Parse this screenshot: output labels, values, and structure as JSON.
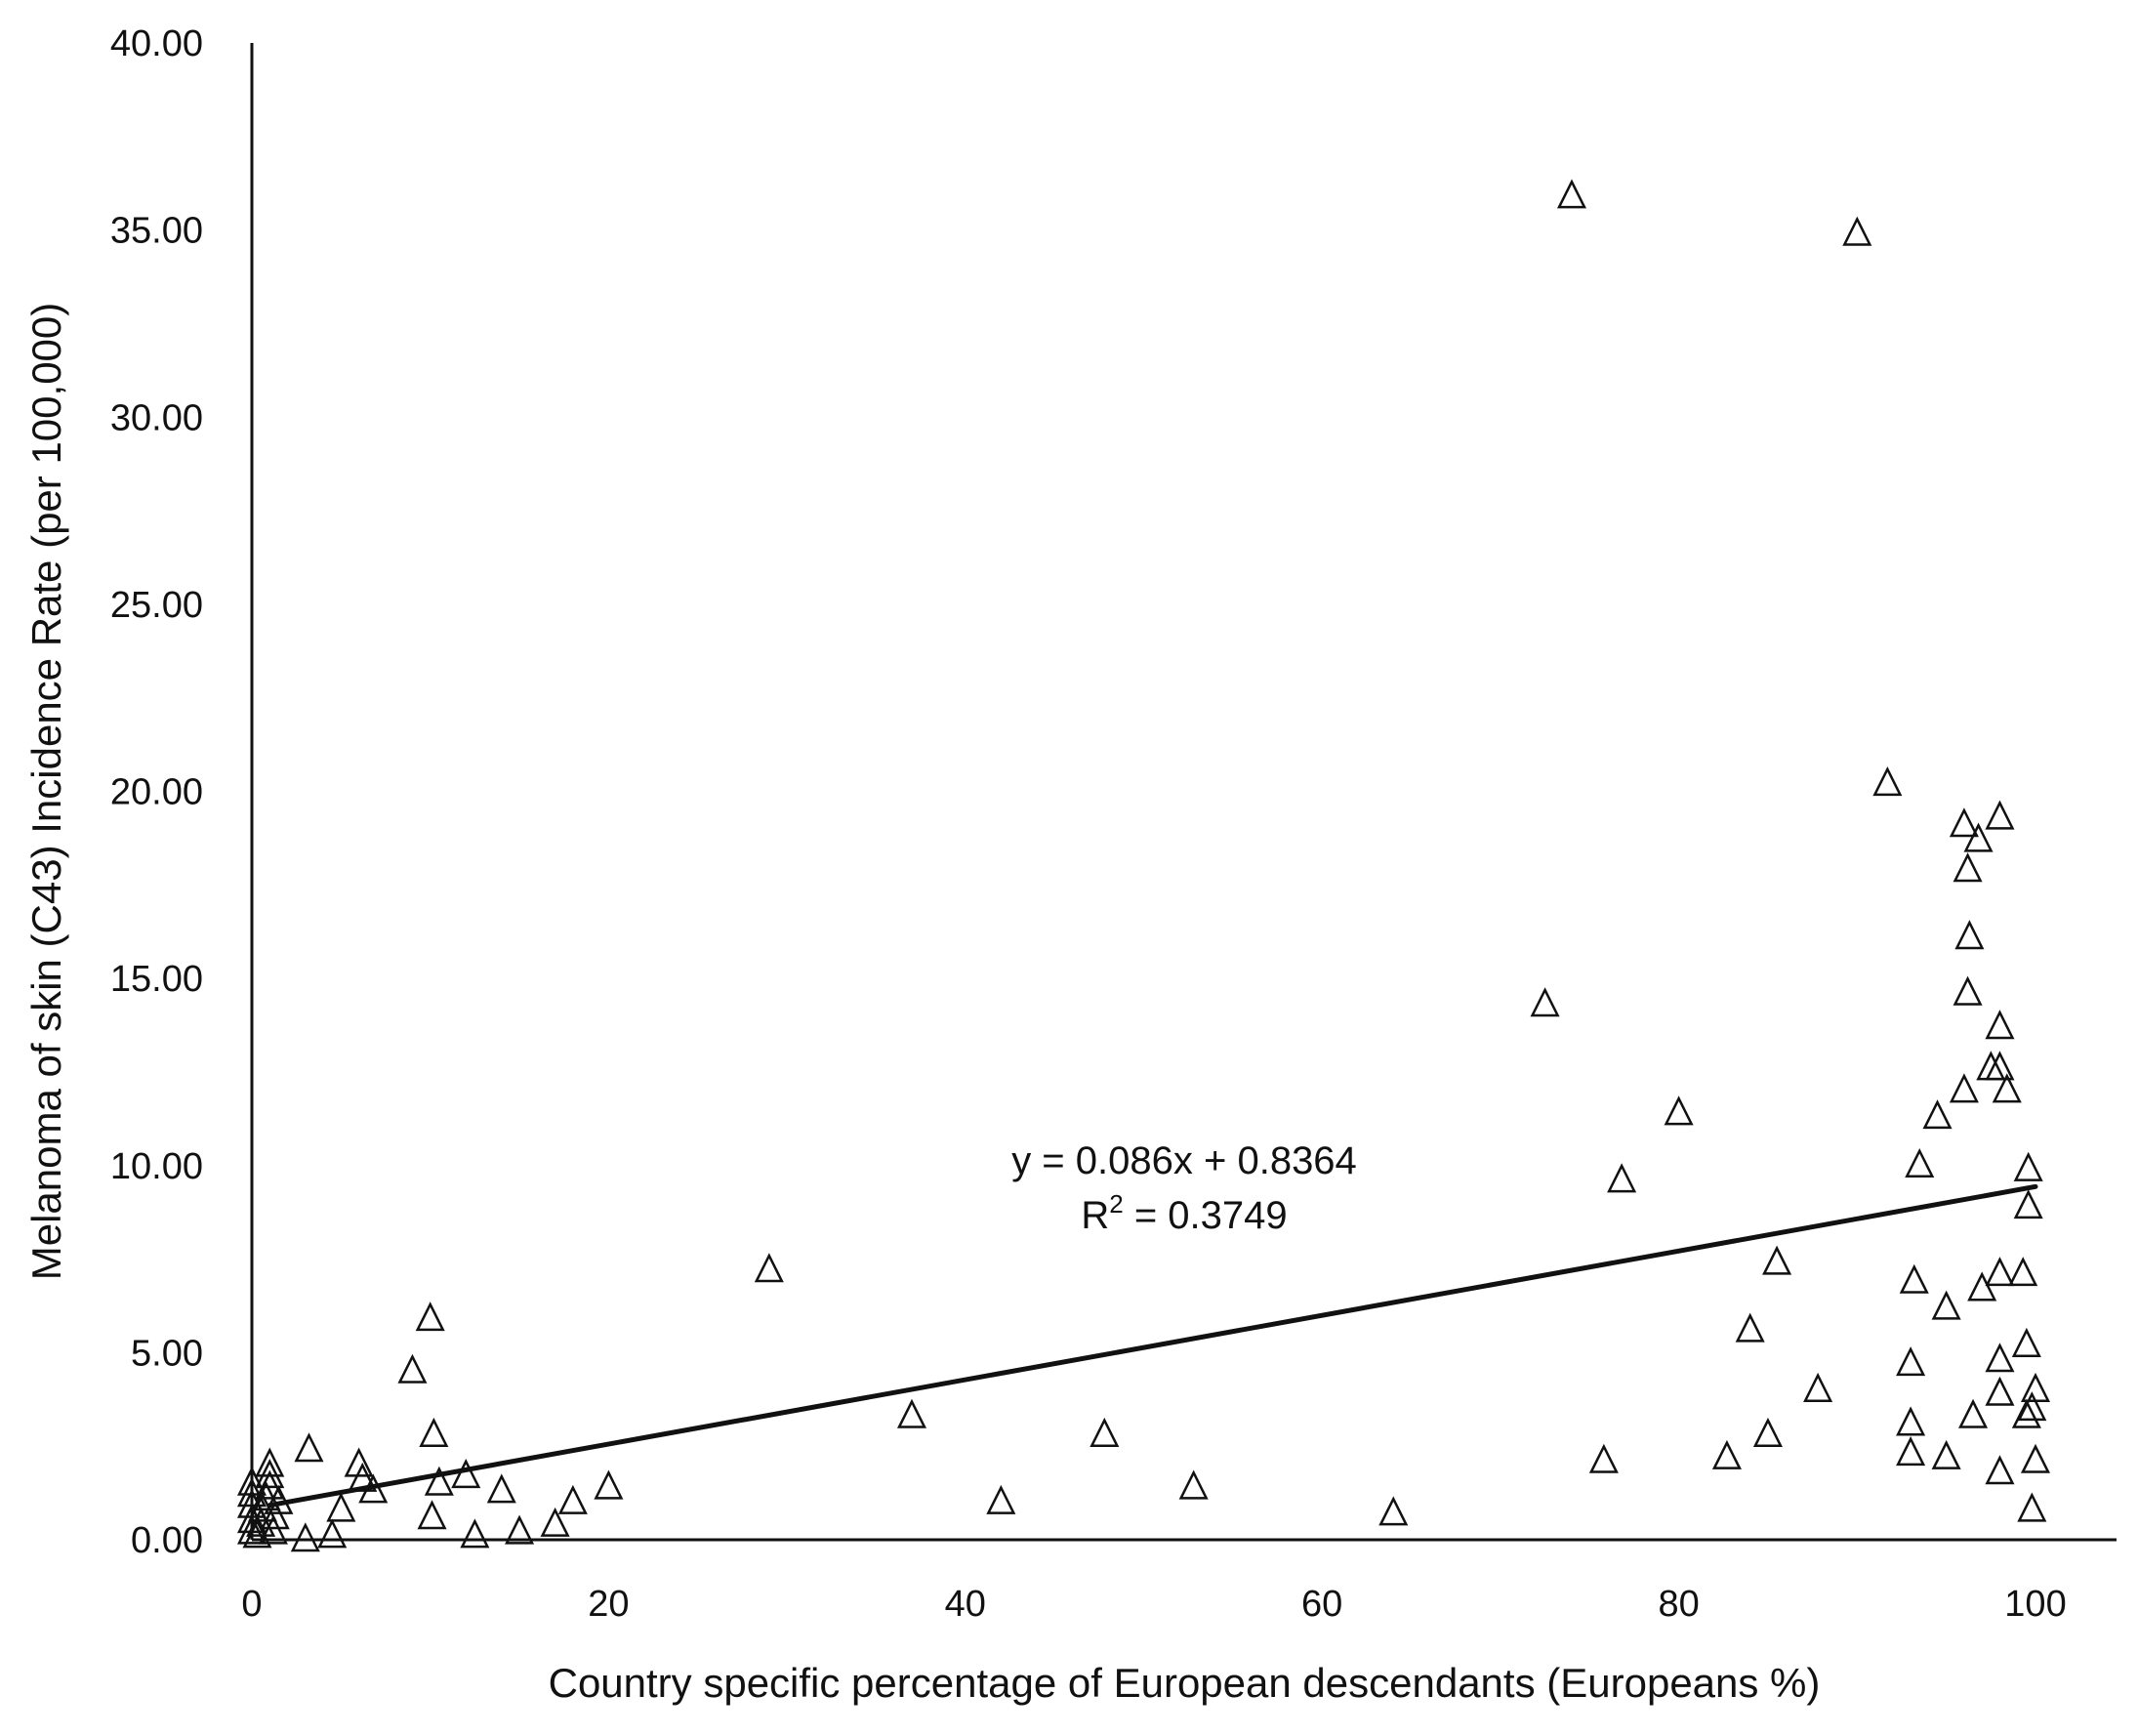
{
  "chart_data": {
    "type": "scatter",
    "title": "",
    "xlabel": "Country specific percentage of European descendants (Europeans %)",
    "ylabel": "Melanoma of skin (C43) Incidence Rate  (per 100,000)",
    "xlim": [
      0,
      105
    ],
    "ylim": [
      0,
      40
    ],
    "x_ticks": [
      "0",
      "20",
      "40",
      "60",
      "80",
      "100"
    ],
    "y_ticks": [
      "0.00",
      "5.00",
      "10.00",
      "15.00",
      "20.00",
      "25.00",
      "30.00",
      "35.00",
      "40.00"
    ],
    "grid": false,
    "legend": "none",
    "marker": "open-triangle",
    "series": [
      {
        "points": [
          [
            0,
            0.2
          ],
          [
            0,
            0.5
          ],
          [
            0,
            0.9
          ],
          [
            0,
            1.2
          ],
          [
            0,
            1.5
          ],
          [
            0.3,
            0.1
          ],
          [
            0.5,
            0.4
          ],
          [
            0.6,
            0.8
          ],
          [
            0.8,
            1.1
          ],
          [
            1,
            1.4
          ],
          [
            1,
            1.7
          ],
          [
            1,
            2.0
          ],
          [
            1.2,
            0.2
          ],
          [
            1.3,
            0.6
          ],
          [
            1.5,
            1.0
          ],
          [
            3,
            0.0
          ],
          [
            3.2,
            2.4
          ],
          [
            4.5,
            0.1
          ],
          [
            5,
            0.8
          ],
          [
            6,
            2.0
          ],
          [
            6.2,
            1.6
          ],
          [
            6.8,
            1.3
          ],
          [
            9,
            4.5
          ],
          [
            10,
            5.9
          ],
          [
            10.2,
            2.8
          ],
          [
            10.5,
            1.5
          ],
          [
            10.1,
            0.6
          ],
          [
            12,
            1.7
          ],
          [
            12.5,
            0.1
          ],
          [
            14,
            1.3
          ],
          [
            15,
            0.2
          ],
          [
            17,
            0.4
          ],
          [
            18,
            1.0
          ],
          [
            20,
            1.4
          ],
          [
            29,
            7.2
          ],
          [
            37,
            3.3
          ],
          [
            42,
            1.0
          ],
          [
            47.8,
            2.8
          ],
          [
            52.8,
            1.4
          ],
          [
            64,
            0.7
          ],
          [
            72.5,
            14.3
          ],
          [
            74,
            35.9
          ],
          [
            75.8,
            2.1
          ],
          [
            76.8,
            9.6
          ],
          [
            80,
            11.4
          ],
          [
            82.7,
            2.2
          ],
          [
            84,
            5.6
          ],
          [
            85,
            2.8
          ],
          [
            85.5,
            7.4
          ],
          [
            87.8,
            4.0
          ],
          [
            90,
            34.9
          ],
          [
            91.7,
            20.2
          ],
          [
            93,
            3.1
          ],
          [
            93,
            4.7
          ],
          [
            93.2,
            6.9
          ],
          [
            93.5,
            10.0
          ],
          [
            93,
            2.3
          ],
          [
            94.5,
            11.3
          ],
          [
            95,
            2.2
          ],
          [
            95,
            6.2
          ],
          [
            96,
            19.1
          ],
          [
            96,
            12.0
          ],
          [
            96.2,
            17.9
          ],
          [
            96.3,
            16.1
          ],
          [
            96.2,
            14.6
          ],
          [
            96.5,
            3.3
          ],
          [
            96.8,
            18.7
          ],
          [
            97,
            6.7
          ],
          [
            97.5,
            12.6
          ],
          [
            98,
            19.3
          ],
          [
            98,
            13.7
          ],
          [
            98,
            12.6
          ],
          [
            98,
            7.1
          ],
          [
            98,
            4.8
          ],
          [
            98,
            3.9
          ],
          [
            98,
            1.8
          ],
          [
            98.4,
            12.0
          ],
          [
            99.3,
            7.1
          ],
          [
            99.5,
            5.2
          ],
          [
            99.5,
            3.3
          ],
          [
            99.6,
            9.9
          ],
          [
            99.6,
            8.9
          ],
          [
            99.8,
            3.5
          ],
          [
            100,
            4.0
          ],
          [
            100,
            2.1
          ],
          [
            99.8,
            0.8
          ]
        ]
      }
    ],
    "trendline": {
      "slope": 0.086,
      "intercept": 0.8364,
      "x_range": [
        1,
        100
      ],
      "equation_label": "y = 0.086x + 0.8364",
      "r2_prefix": "R",
      "r2_sup": "2",
      "r2_suffix": " = 0.3749"
    }
  }
}
